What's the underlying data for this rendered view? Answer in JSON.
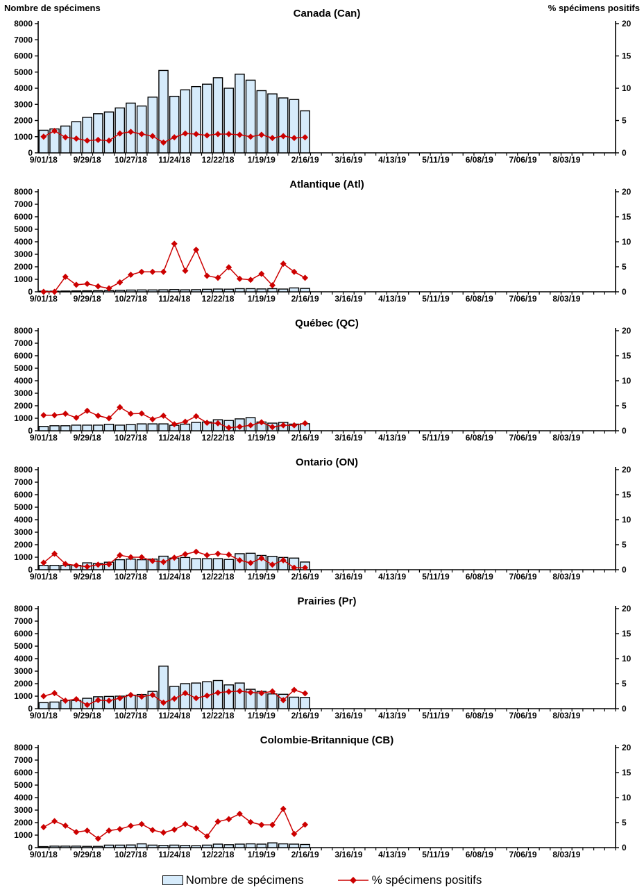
{
  "header": {
    "left_axis_title": "Nombre de spécimens",
    "right_axis_title": "% spécimens positifs"
  },
  "legend": {
    "bars_label": "Nombre de spécimens",
    "line_label": "% spécimens positifs"
  },
  "colors": {
    "bar_fill": "#D6EBFB",
    "bar_stroke": "#000000",
    "line_color": "#CC0000",
    "marker_color": "#CC0000",
    "axis_color": "#000000"
  },
  "axes": {
    "left_ticks": [
      0,
      1000,
      2000,
      3000,
      4000,
      5000,
      6000,
      7000,
      8000
    ],
    "left_max": 8000,
    "right_ticks": [
      0,
      5,
      10,
      15,
      20
    ],
    "right_max": 20,
    "weeks_total": 53,
    "label_every": 4,
    "x_tick_labels": [
      "9/01/18",
      "9/29/18",
      "10/27/18",
      "11/24/18",
      "12/22/18",
      "1/19/19",
      "2/16/19",
      "3/16/19",
      "4/13/19",
      "5/11/19",
      "6/08/19",
      "7/06/19",
      "8/03/19"
    ]
  },
  "chart_data": [
    {
      "type": "bar+line",
      "title": "Canada (Can)",
      "categories": [
        "9/01/18",
        "9/08/18",
        "9/15/18",
        "9/22/18",
        "9/29/18",
        "10/06/18",
        "10/13/18",
        "10/20/18",
        "10/27/18",
        "11/03/18",
        "11/10/18",
        "11/17/18",
        "11/24/18",
        "12/01/18",
        "12/08/18",
        "12/15/18",
        "12/22/18",
        "12/29/18",
        "1/05/19",
        "1/12/19",
        "1/19/19",
        "1/26/19",
        "2/02/19",
        "2/09/19",
        "2/16/19"
      ],
      "specimens": [
        1400,
        1480,
        1660,
        1930,
        2200,
        2420,
        2530,
        2780,
        3080,
        2900,
        3450,
        5100,
        3500,
        3900,
        4100,
        4250,
        4650,
        4000,
        4870,
        4500,
        3850,
        3650,
        3400,
        3300,
        2600
      ],
      "pct_positive": [
        2.5,
        3.4,
        2.4,
        2.2,
        1.9,
        2.0,
        1.9,
        3.0,
        3.25,
        2.9,
        2.6,
        1.6,
        2.4,
        3.0,
        2.9,
        2.7,
        2.9,
        2.9,
        2.8,
        2.5,
        2.8,
        2.3,
        2.6,
        2.3,
        2.4
      ]
    },
    {
      "type": "bar+line",
      "title": "Atlantique (Atl)",
      "categories": [
        "9/01/18",
        "9/08/18",
        "9/15/18",
        "9/22/18",
        "9/29/18",
        "10/06/18",
        "10/13/18",
        "10/20/18",
        "10/27/18",
        "11/03/18",
        "11/10/18",
        "11/17/18",
        "11/24/18",
        "12/01/18",
        "12/08/18",
        "12/15/18",
        "12/22/18",
        "12/29/18",
        "1/05/19",
        "1/12/19",
        "1/19/19",
        "1/26/19",
        "2/02/19",
        "2/09/19",
        "2/16/19"
      ],
      "specimens": [
        50,
        50,
        60,
        70,
        80,
        90,
        100,
        120,
        140,
        150,
        150,
        160,
        180,
        160,
        170,
        200,
        220,
        210,
        250,
        250,
        230,
        250,
        220,
        310,
        270
      ],
      "pct_positive": [
        0,
        0,
        3.0,
        1.4,
        1.6,
        1.1,
        0.7,
        1.9,
        3.4,
        4.0,
        4.0,
        4.0,
        9.6,
        4.2,
        8.4,
        3.2,
        2.8,
        4.9,
        2.6,
        2.4,
        3.6,
        1.3,
        5.6,
        4.0,
        2.8
      ]
    },
    {
      "type": "bar+line",
      "title": "Québec (QC)",
      "categories": [
        "9/01/18",
        "9/08/18",
        "9/15/18",
        "9/22/18",
        "9/29/18",
        "10/06/18",
        "10/13/18",
        "10/20/18",
        "10/27/18",
        "11/03/18",
        "11/10/18",
        "11/17/18",
        "11/24/18",
        "12/01/18",
        "12/08/18",
        "12/15/18",
        "12/22/18",
        "12/29/18",
        "1/05/19",
        "1/12/19",
        "1/19/19",
        "1/26/19",
        "2/02/19",
        "2/09/19",
        "2/16/19"
      ],
      "specimens": [
        350,
        400,
        400,
        450,
        450,
        450,
        520,
        450,
        500,
        550,
        550,
        550,
        440,
        530,
        670,
        700,
        880,
        820,
        950,
        1050,
        700,
        610,
        670,
        530,
        560
      ],
      "pct_positive": [
        3.1,
        3.1,
        3.4,
        2.6,
        4.0,
        3.0,
        2.5,
        4.7,
        3.4,
        3.45,
        2.3,
        3.0,
        1.3,
        1.8,
        2.9,
        1.6,
        1.5,
        0.6,
        0.8,
        1.1,
        1.7,
        0.75,
        1.1,
        1.1,
        1.5
      ]
    },
    {
      "type": "bar+line",
      "title": "Ontario (ON)",
      "categories": [
        "9/01/18",
        "9/08/18",
        "9/15/18",
        "9/22/18",
        "9/29/18",
        "10/06/18",
        "10/13/18",
        "10/20/18",
        "10/27/18",
        "11/03/18",
        "11/10/18",
        "11/17/18",
        "11/24/18",
        "12/01/18",
        "12/08/18",
        "12/15/18",
        "12/22/18",
        "12/29/18",
        "1/05/19",
        "1/12/19",
        "1/19/19",
        "1/26/19",
        "2/02/19",
        "2/09/19",
        "2/16/19"
      ],
      "specimens": [
        350,
        350,
        350,
        350,
        550,
        500,
        600,
        800,
        850,
        800,
        850,
        1080,
        930,
        980,
        880,
        880,
        880,
        820,
        1280,
        1315,
        1140,
        1070,
        980,
        930,
        615
      ],
      "pct_positive": [
        1.4,
        3.2,
        1.15,
        0.85,
        0.6,
        1.0,
        1.1,
        2.9,
        2.5,
        2.5,
        1.75,
        1.55,
        2.4,
        3.1,
        3.6,
        2.9,
        3.2,
        3.0,
        1.9,
        1.35,
        2.3,
        1.0,
        1.9,
        0.4,
        0.4
      ]
    },
    {
      "type": "bar+line",
      "title": "Prairies (Pr)",
      "categories": [
        "9/01/18",
        "9/08/18",
        "9/15/18",
        "9/22/18",
        "9/29/18",
        "10/06/18",
        "10/13/18",
        "10/20/18",
        "10/27/18",
        "11/03/18",
        "11/10/18",
        "11/17/18",
        "11/24/18",
        "12/01/18",
        "12/08/18",
        "12/15/18",
        "12/22/18",
        "12/29/18",
        "1/05/19",
        "1/12/19",
        "1/19/19",
        "1/26/19",
        "2/02/19",
        "2/09/19",
        "2/16/19"
      ],
      "specimens": [
        480,
        530,
        660,
        660,
        830,
        950,
        980,
        1000,
        1080,
        1130,
        1380,
        3400,
        1780,
        2000,
        2050,
        2150,
        2250,
        1900,
        2050,
        1550,
        1380,
        1180,
        1150,
        920,
        900
      ],
      "pct_positive": [
        2.5,
        3.1,
        1.6,
        1.9,
        0.75,
        1.7,
        1.6,
        2.1,
        2.75,
        2.4,
        2.75,
        1.2,
        2.0,
        3.1,
        2.1,
        2.6,
        3.2,
        3.4,
        3.5,
        3.25,
        3.1,
        3.45,
        1.7,
        3.75,
        3.05
      ]
    },
    {
      "type": "bar+line",
      "title": "Colombie-Britannique (CB)",
      "categories": [
        "9/01/18",
        "9/08/18",
        "9/15/18",
        "9/22/18",
        "9/29/18",
        "10/06/18",
        "10/13/18",
        "10/20/18",
        "10/27/18",
        "11/03/18",
        "11/10/18",
        "11/17/18",
        "11/24/18",
        "12/01/18",
        "12/08/18",
        "12/15/18",
        "12/22/18",
        "12/29/18",
        "1/05/19",
        "1/12/19",
        "1/19/19",
        "1/26/19",
        "2/02/19",
        "2/09/19",
        "2/16/19"
      ],
      "specimens": [
        80,
        120,
        120,
        120,
        100,
        100,
        200,
        200,
        210,
        300,
        200,
        180,
        200,
        180,
        150,
        200,
        280,
        230,
        280,
        300,
        280,
        380,
        300,
        280,
        250
      ],
      "pct_positive": [
        4.1,
        5.3,
        4.4,
        3.1,
        3.4,
        1.8,
        3.4,
        3.7,
        4.35,
        4.7,
        3.5,
        3.0,
        3.6,
        4.7,
        3.85,
        2.25,
        5.2,
        5.7,
        6.75,
        5.1,
        4.55,
        4.55,
        7.75,
        2.75,
        4.6
      ]
    }
  ]
}
